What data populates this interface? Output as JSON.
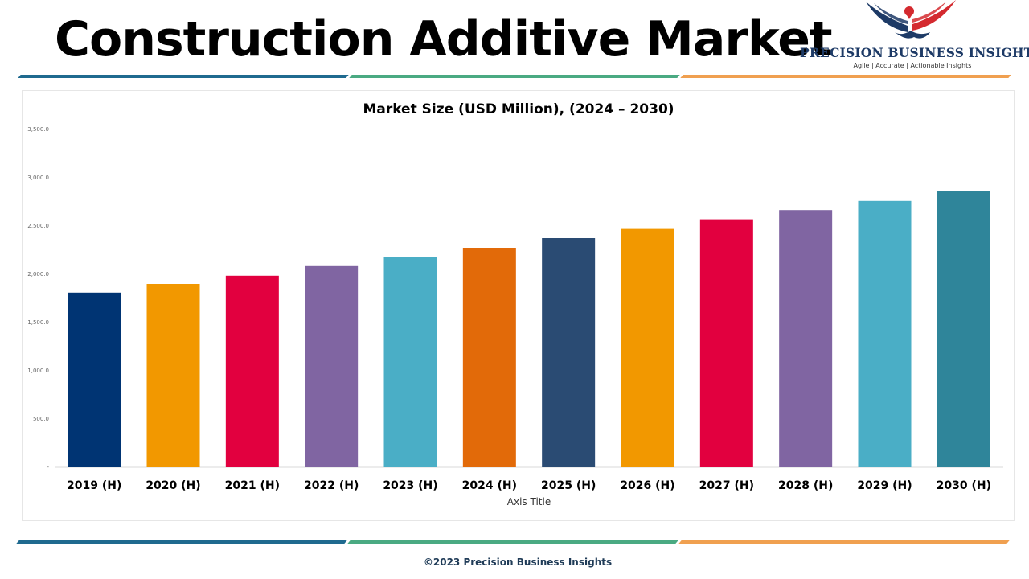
{
  "page": {
    "title": "Construction Additive Market",
    "footer": "©2023 Precision Business Insights"
  },
  "logo": {
    "name": "PRECISION BUSINESS INSIGHTS",
    "tagline": "Agile | Accurate | Actionable Insights"
  },
  "colors": {
    "stripe_blue": "#1f6a8f",
    "stripe_green": "#4aaa82",
    "stripe_orange": "#f0a050",
    "logo_navy": "#1d3a66",
    "logo_red": "#d42a2f"
  },
  "chart_data": {
    "type": "bar",
    "title": "Market Size (USD Million), (2024 – 2030)",
    "xlabel": "Axis Title",
    "ylabel": "",
    "ylim": [
      0,
      3500
    ],
    "y_ticks": [
      "-",
      "500.0",
      "1,000.0",
      "1,500.0",
      "2,000.0",
      "2,500.0",
      "3,000.0",
      "3,500.0"
    ],
    "categories": [
      "2019 (H)",
      "2020 (H)",
      "2021 (H)",
      "2022 (H)",
      "2023 (H)",
      "2024 (H)",
      "2025 (H)",
      "2026 (H)",
      "2027 (H)",
      "2028 (H)",
      "2029 (H)",
      "2030 (H)"
    ],
    "values": [
      1810,
      1900,
      1985,
      2085,
      2175,
      2275,
      2375,
      2470,
      2570,
      2665,
      2760,
      2860
    ],
    "bar_colors": [
      "#003473",
      "#f29800",
      "#e2003f",
      "#8065a2",
      "#4aaec6",
      "#e26a09",
      "#2a4b73",
      "#f29800",
      "#e2003f",
      "#8065a2",
      "#4aaec6",
      "#2f859a"
    ],
    "grid": false,
    "legend": "none"
  }
}
